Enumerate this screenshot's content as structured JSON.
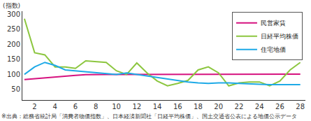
{
  "chart_data": {
    "type": "line",
    "y_label": "(指数)",
    "note": "※出典：総務省統計局「消費者物価指数」、日本経済新聞社「日経平均株価」、国土交通省公表による地価公示データ",
    "x": [
      1,
      2,
      3,
      4,
      5,
      6,
      7,
      8,
      9,
      10,
      11,
      12,
      13,
      14,
      15,
      16,
      17,
      18,
      19,
      20,
      21,
      22,
      23,
      24,
      25,
      26,
      27,
      28
    ],
    "series": [
      {
        "name": "民営家賃",
        "color": "#d6127f",
        "values": [
          83,
          86,
          89,
          92,
          95,
          97,
          99,
          100,
          100,
          100,
          100,
          100,
          100,
          100,
          100,
          100,
          100,
          100,
          100,
          101,
          101,
          101,
          101,
          101,
          101,
          101,
          101,
          101
        ]
      },
      {
        "name": "日経平均株価",
        "color": "#8cc63f",
        "values": [
          285,
          172,
          165,
          125,
          125,
          120,
          145,
          143,
          140,
          112,
          100,
          138,
          105,
          78,
          62,
          70,
          80,
          115,
          125,
          105,
          62,
          72,
          75,
          75,
          62,
          78,
          115,
          140
        ]
      },
      {
        "name": "住宅地価",
        "color": "#1eaae7",
        "values": [
          100,
          125,
          140,
          130,
          115,
          112,
          108,
          105,
          102,
          100,
          105,
          100,
          95,
          90,
          85,
          80,
          75,
          72,
          70,
          72,
          72,
          70,
          68,
          67,
          66,
          66,
          66,
          66
        ]
      }
    ],
    "xlim": [
      0.8,
      28.5
    ],
    "xticks": [
      2,
      4,
      6,
      8,
      10,
      12,
      14,
      16,
      18,
      20,
      22,
      24,
      26,
      28
    ],
    "ylim": [
      15,
      310
    ],
    "yticks": [
      50,
      100,
      150,
      200,
      250,
      300
    ],
    "grid": false,
    "legend": "upper right"
  }
}
